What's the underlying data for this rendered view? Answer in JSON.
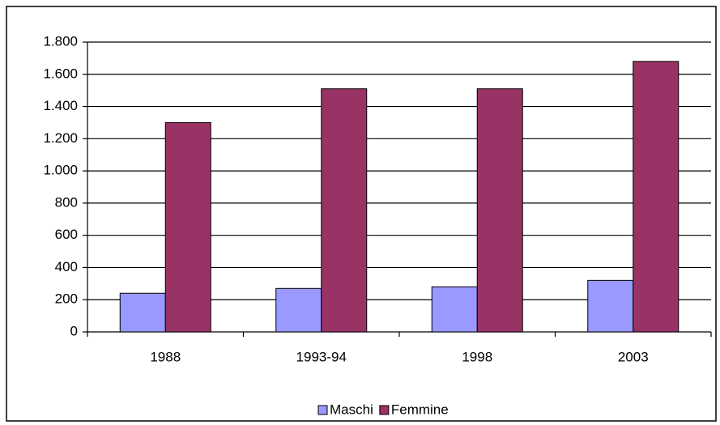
{
  "chart_data": {
    "type": "bar",
    "categories": [
      "1988",
      "1993-94",
      "1998",
      "2003"
    ],
    "series": [
      {
        "name": "Maschi",
        "color": "#9999ff",
        "values": [
          240,
          270,
          280,
          320
        ]
      },
      {
        "name": "Femmine",
        "color": "#993366",
        "values": [
          1300,
          1510,
          1510,
          1680
        ]
      }
    ],
    "ylim": [
      0,
      1800
    ],
    "yticks": [
      0,
      200,
      400,
      600,
      800,
      {
        "value": 1000,
        "label": "1.000"
      },
      {
        "value": 1200,
        "label": "1.200"
      },
      {
        "value": 1400,
        "label": "1.400"
      },
      {
        "value": 1600,
        "label": "1.600"
      },
      {
        "value": 1800,
        "label": "1.800"
      }
    ],
    "grid": true,
    "legend": "bottom"
  }
}
